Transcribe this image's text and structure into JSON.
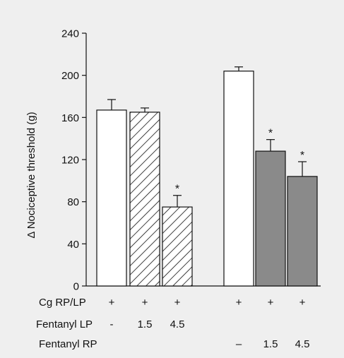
{
  "chart_data": {
    "type": "bar",
    "title": "",
    "xlabel": "",
    "ylabel": "Δ Nociceptive threshold (g)",
    "ylim": [
      0,
      240
    ],
    "yticks": [
      0,
      40,
      80,
      120,
      160,
      200,
      240
    ],
    "grid": false,
    "legend": "none",
    "bars": [
      {
        "group": 1,
        "fill": "white",
        "value": 167,
        "error": 10,
        "significant": false
      },
      {
        "group": 1,
        "fill": "hatched",
        "value": 165,
        "error": 4,
        "significant": false
      },
      {
        "group": 1,
        "fill": "hatched",
        "value": 75,
        "error": 11,
        "significant": true
      },
      {
        "group": 2,
        "fill": "white",
        "value": 204,
        "error": 4,
        "significant": false
      },
      {
        "group": 2,
        "fill": "gray",
        "value": 128,
        "error": 11,
        "significant": true
      },
      {
        "group": 2,
        "fill": "gray",
        "value": 104,
        "error": 14,
        "significant": true
      }
    ],
    "significance_marker": "*",
    "colors": {
      "white": "#ffffff",
      "gray": "#8a8a8a",
      "hatch": "#111111",
      "background": "#efefef"
    }
  },
  "conditions": [
    {
      "label": "Cg RP/LP",
      "values": [
        "+",
        "+",
        "+",
        "+",
        "+",
        "+"
      ]
    },
    {
      "label": "Fentanyl LP",
      "values": [
        "-",
        "1.5",
        "4.5",
        "",
        "",
        ""
      ]
    },
    {
      "label": "Fentanyl RP",
      "values": [
        "",
        "",
        "",
        "–",
        "1.5",
        "4.5"
      ]
    }
  ]
}
